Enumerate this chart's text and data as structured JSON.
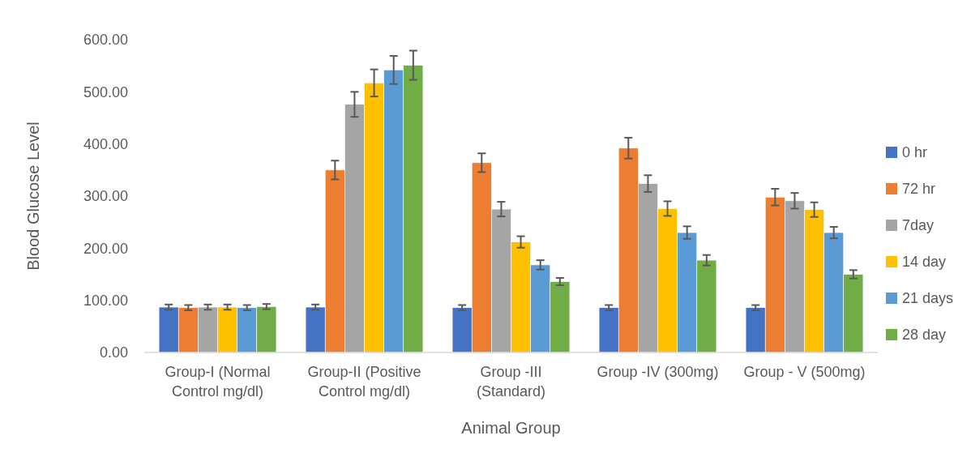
{
  "chart_data": {
    "type": "bar",
    "xlabel": "Animal Group",
    "ylabel": "Blood Glucose Level",
    "categories": [
      "Group-I (Normal Control mg/dl)",
      "Group-II (Positive Control mg/dl)",
      "Group -III (Standard)",
      "Group -IV (300mg)",
      "Group - V (500mg)"
    ],
    "series": [
      {
        "name": "0 hr",
        "color": "#4472c4",
        "values": [
          87,
          87,
          86,
          86,
          86
        ],
        "errors": [
          5,
          5,
          5,
          5,
          5
        ]
      },
      {
        "name": "72 hr",
        "color": "#ed7d31",
        "values": [
          86,
          350,
          364,
          392,
          298
        ],
        "errors": [
          5,
          18,
          18,
          20,
          16
        ]
      },
      {
        "name": "7day",
        "color": "#a5a5a5",
        "values": [
          87,
          476,
          275,
          324,
          291
        ],
        "errors": [
          5,
          24,
          14,
          16,
          15
        ]
      },
      {
        "name": "14 day",
        "color": "#ffc000",
        "values": [
          87,
          517,
          212,
          276,
          274
        ],
        "errors": [
          5,
          26,
          11,
          14,
          14
        ]
      },
      {
        "name": "21 days",
        "color": "#5b9bd5",
        "values": [
          86,
          542,
          168,
          230,
          230
        ],
        "errors": [
          5,
          27,
          9,
          12,
          11
        ]
      },
      {
        "name": "28 day",
        "color": "#70ad47",
        "values": [
          88,
          551,
          136,
          177,
          150
        ],
        "errors": [
          5,
          28,
          7,
          10,
          8
        ]
      }
    ],
    "ylim": [
      0,
      600
    ],
    "yticks": [
      {
        "value": 0,
        "label": "0.00"
      },
      {
        "value": 100,
        "label": "100.00"
      },
      {
        "value": 200,
        "label": "200.00"
      },
      {
        "value": 300,
        "label": "300.00"
      },
      {
        "value": 400,
        "label": "400.00"
      },
      {
        "value": 500,
        "label": "500.00"
      },
      {
        "value": 600,
        "label": "600.00"
      }
    ],
    "legend": "right"
  }
}
